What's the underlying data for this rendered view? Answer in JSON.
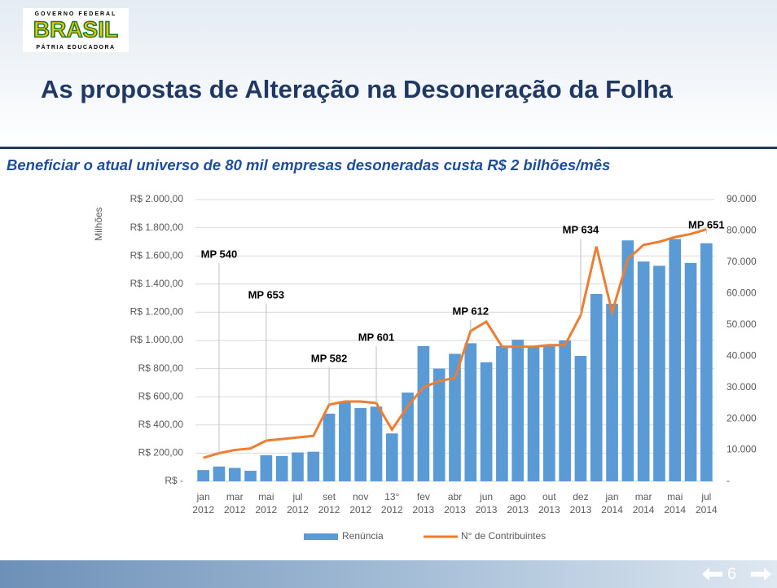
{
  "header": {
    "logo": {
      "top": "GOVERNO FEDERAL",
      "name": "BRASIL",
      "bottom": "PÁTRIA EDUCADORA"
    },
    "title": "As propostas de Alteração na Desoneração da Folha"
  },
  "subtitle": "Beneficiar o atual universo de 80  mil empresas desoneradas custa R$ 2 bilhões/mês",
  "chart_data": {
    "type": "bar_line",
    "y_label": "Milhões",
    "categories": [
      "jan 2012",
      null,
      "mar 2012",
      null,
      "mai 2012",
      null,
      "jul 2012",
      null,
      "set 2012",
      null,
      "nov 2012",
      null,
      "13° 2012",
      null,
      "fev 2013",
      null,
      "abr 2013",
      null,
      "jun 2013",
      null,
      "ago 2013",
      null,
      "out 2013",
      null,
      "dez 2013",
      null,
      "jan 2014",
      null,
      "mar 2014",
      null,
      "mai 2014",
      null,
      "jul 2014"
    ],
    "series": [
      {
        "name": "Renúncia",
        "type": "bar",
        "color": "#5b9bd5",
        "values": [
          80,
          105,
          95,
          75,
          185,
          180,
          205,
          210,
          480,
          560,
          520,
          530,
          340,
          630,
          960,
          800,
          905,
          980,
          845,
          960,
          1005,
          960,
          960,
          1000,
          890,
          1330,
          1260,
          1710,
          1560,
          1530,
          1720,
          1550,
          1690
        ]
      },
      {
        "name": "N° de Contribuintes",
        "type": "line",
        "axis": "y2",
        "color": "#ed7d31",
        "values": [
          7500,
          9000,
          10000,
          10500,
          13000,
          13500,
          14000,
          14500,
          24500,
          25500,
          25500,
          25000,
          16500,
          24000,
          30000,
          32000,
          33000,
          48000,
          51000,
          43000,
          43000,
          43000,
          43500,
          43500,
          53000,
          75000,
          54000,
          71000,
          75500,
          76500,
          78000,
          79000,
          80500
        ]
      }
    ],
    "ylim": [
      0,
      2000
    ],
    "yticks": [
      {
        "value": 0,
        "label": "R$ -"
      },
      {
        "value": 200,
        "label": "R$ 200,00"
      },
      {
        "value": 400,
        "label": "R$ 400,00"
      },
      {
        "value": 600,
        "label": "R$ 600,00"
      },
      {
        "value": 800,
        "label": "R$ 800,00"
      },
      {
        "value": 1000,
        "label": "R$ 1.000,00"
      },
      {
        "value": 1200,
        "label": "R$ 1.200,00"
      },
      {
        "value": 1400,
        "label": "R$ 1.400,00"
      },
      {
        "value": 1600,
        "label": "R$ 1.600,00"
      },
      {
        "value": 1800,
        "label": "R$ 1.800,00"
      },
      {
        "value": 2000,
        "label": "R$ 2.000,00"
      }
    ],
    "y2lim": [
      0,
      90000
    ],
    "y2ticks": [
      {
        "value": 0,
        "label": "-"
      },
      {
        "value": 10000,
        "label": "10.000"
      },
      {
        "value": 20000,
        "label": "20.000"
      },
      {
        "value": 30000,
        "label": "30.000"
      },
      {
        "value": 40000,
        "label": "40.000"
      },
      {
        "value": 50000,
        "label": "50.000"
      },
      {
        "value": 60000,
        "label": "60.000"
      },
      {
        "value": 70000,
        "label": "70.000"
      },
      {
        "value": 80000,
        "label": "80.000"
      },
      {
        "value": 90000,
        "label": "90.000"
      }
    ],
    "grid": true,
    "legend": "bottom",
    "annotations": [
      "MP 540",
      "MP 653",
      "MP 582",
      "MP 601",
      "MP 612",
      "MP 634",
      "MP 651"
    ]
  },
  "footer": {
    "page_number": "6"
  }
}
